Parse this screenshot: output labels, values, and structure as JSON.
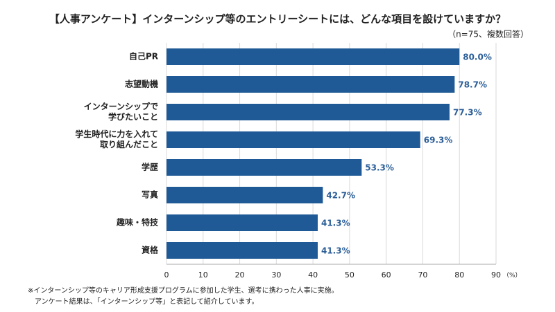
{
  "chart_data": {
    "type": "barh",
    "title": "【人事アンケート】インターンシップ等のエントリーシートには、どんな項目を設けていますか？",
    "subtitle": "（n=75、複数回答）",
    "categories": [
      "自己PR",
      "志望動機",
      "インターンシップで\n学びたいこと",
      "学生時代に力を入れて\n取り組んだこと",
      "学歴",
      "写真",
      "趣味・特技",
      "資格"
    ],
    "values": [
      80.0,
      78.7,
      77.3,
      69.3,
      53.3,
      42.7,
      41.3,
      41.3
    ],
    "value_labels": [
      "80.0%",
      "78.7%",
      "77.3%",
      "69.3%",
      "53.3%",
      "42.7%",
      "41.3%",
      "41.3%"
    ],
    "color": "#1f5a96",
    "label_color": "#2b5e98",
    "xlim": [
      0,
      90
    ],
    "xticks": [
      0,
      10,
      20,
      30,
      40,
      50,
      60,
      70,
      80,
      90
    ],
    "xlabel": "（%）",
    "grid": true,
    "notes": [
      "※インターンシップ等のキャリア形成支援プログラムに参加した学生、選考に携わった人事に実施。",
      "アンケート結果は、「インターンシップ等」と表記して紹介しています。"
    ]
  }
}
